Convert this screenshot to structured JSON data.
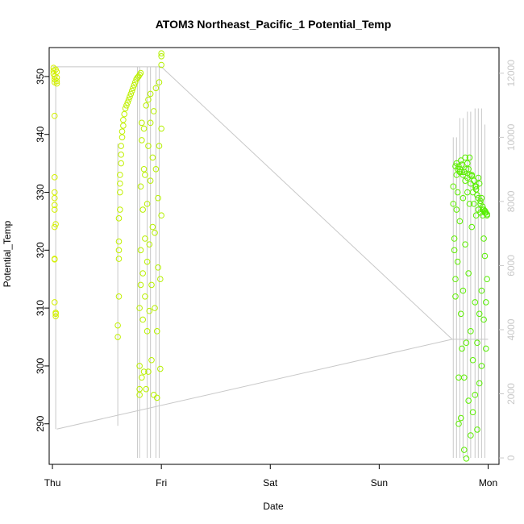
{
  "chart_data": {
    "type": "scatter",
    "title": "ATOM3 Northeast_Pacific_1 Potential_Temp",
    "xlabel": "Date",
    "ylabel": "Potential_Temp",
    "x_ticks": [
      "Thu",
      "Fri",
      "Sat",
      "Sun",
      "Mon"
    ],
    "xlim": [
      -0.03,
      4.1
    ],
    "ylim": [
      283,
      355
    ],
    "y_ticks": [
      290,
      300,
      310,
      320,
      330,
      340,
      350
    ],
    "y2lim": [
      -200,
      12800
    ],
    "y2_ticks": [
      0,
      2000,
      4000,
      6000,
      8000,
      10000,
      12000
    ],
    "grid": false,
    "legend": "none",
    "series": [
      {
        "kind": "points",
        "color_start": "#d4f000",
        "color_end": "#55ee00",
        "x": [
          0.01,
          0.01,
          0.01,
          0.02,
          0.02,
          0.02,
          0.02,
          0.02,
          0.02,
          0.02,
          0.02,
          0.02,
          0.03,
          0.02,
          0.02,
          0.02,
          0.02,
          0.03,
          0.03,
          0.03,
          0.03,
          0.04,
          0.04,
          0.04,
          0.04,
          0.6,
          0.6,
          0.61,
          0.61,
          0.61,
          0.61,
          0.61,
          0.62,
          0.62,
          0.62,
          0.62,
          0.63,
          0.63,
          0.63,
          0.64,
          0.64,
          0.65,
          0.65,
          0.66,
          0.67,
          0.68,
          0.69,
          0.7,
          0.71,
          0.72,
          0.73,
          0.74,
          0.75,
          0.76,
          0.77,
          0.78,
          0.79,
          0.8,
          0.81,
          0.8,
          0.8,
          0.8,
          0.8,
          0.81,
          0.81,
          0.81,
          0.82,
          0.82,
          0.82,
          0.83,
          0.83,
          0.83,
          0.84,
          0.84,
          0.84,
          0.85,
          0.85,
          0.85,
          0.86,
          0.86,
          0.87,
          0.87,
          0.87,
          0.88,
          0.88,
          0.88,
          0.89,
          0.89,
          0.9,
          0.9,
          0.9,
          0.91,
          0.91,
          0.92,
          0.92,
          0.93,
          0.93,
          0.94,
          0.94,
          0.95,
          0.95,
          0.96,
          0.96,
          0.97,
          0.97,
          0.98,
          0.98,
          0.99,
          0.99,
          1.0,
          1.0,
          1.0,
          1.0,
          1.0,
          3.68,
          3.68,
          3.69,
          3.69,
          3.7,
          3.7,
          3.71,
          3.71,
          3.72,
          3.72,
          3.73,
          3.73,
          3.74,
          3.74,
          3.75,
          3.75,
          3.76,
          3.76,
          3.77,
          3.77,
          3.78,
          3.78,
          3.79,
          3.79,
          3.8,
          3.8,
          3.81,
          3.81,
          3.82,
          3.82,
          3.83,
          3.83,
          3.84,
          3.84,
          3.85,
          3.85,
          3.86,
          3.86,
          3.87,
          3.87,
          3.88,
          3.88,
          3.89,
          3.89,
          3.9,
          3.9,
          3.91,
          3.91,
          3.92,
          3.92,
          3.93,
          3.93,
          3.94,
          3.94,
          3.95,
          3.95,
          3.96,
          3.96,
          3.97,
          3.97,
          3.98,
          3.98,
          3.99,
          3.99,
          3.7,
          3.71,
          3.72,
          3.73,
          3.74,
          3.75,
          3.76,
          3.77,
          3.78,
          3.79,
          3.8,
          3.81,
          3.82,
          3.83,
          3.84,
          3.85,
          3.86,
          3.87,
          3.88,
          3.89,
          3.9,
          3.91,
          3.92,
          3.93,
          3.94,
          3.95,
          3.96,
          3.97,
          3.98,
          3.99
        ],
        "y": [
          351.5,
          351.0,
          350.5,
          350.0,
          349.5,
          349.0,
          343.2,
          332.6,
          330.0,
          329.0,
          327.8,
          327.0,
          324.5,
          324.0,
          318.5,
          318.4,
          311.0,
          309.2,
          309.0,
          308.6,
          351.2,
          350.8,
          349.8,
          349.2,
          348.8,
          305.0,
          307.0,
          312.0,
          318.5,
          320.0,
          321.5,
          325.5,
          327.0,
          330.0,
          331.5,
          333.0,
          335.0,
          336.5,
          338.0,
          339.5,
          340.5,
          341.5,
          342.5,
          343.5,
          344.5,
          345.0,
          345.5,
          346.0,
          346.5,
          347.0,
          347.5,
          348.0,
          348.5,
          349.0,
          349.5,
          349.8,
          350.0,
          350.3,
          350.6,
          295.0,
          296.0,
          300.0,
          310.0,
          314.0,
          320.0,
          331.0,
          339.0,
          342.0,
          298.0,
          308.0,
          316.0,
          327.0,
          334.0,
          341.0,
          299.0,
          312.0,
          322.0,
          333.0,
          345.0,
          296.0,
          306.0,
          318.0,
          328.0,
          338.0,
          346.0,
          299.0,
          309.5,
          321.0,
          332.0,
          342.0,
          347.0,
          301.0,
          314.0,
          324.0,
          336.0,
          344.0,
          295.0,
          310.0,
          323.0,
          334.0,
          348.0,
          294.5,
          306.0,
          317.0,
          329.0,
          338.0,
          349.0,
          299.5,
          315.0,
          326.0,
          341.0,
          352.0,
          353.5,
          354.0,
          331.0,
          328.0,
          322.0,
          320.0,
          315.0,
          312.0,
          333.0,
          327.0,
          330.0,
          318.0,
          290.0,
          298.0,
          334.0,
          325.0,
          309.0,
          291.0,
          303.0,
          333.5,
          329.0,
          313.0,
          298.0,
          285.5,
          332.0,
          321.0,
          304.0,
          284.0,
          335.0,
          330.0,
          316.0,
          294.0,
          336.0,
          328.0,
          306.0,
          288.0,
          333.0,
          324.0,
          301.0,
          292.0,
          332.0,
          328.0,
          311.0,
          295.0,
          331.0,
          326.0,
          304.0,
          289.0,
          329.0,
          327.0,
          309.0,
          297.0,
          328.0,
          326.5,
          313.0,
          300.0,
          327.0,
          326.0,
          322.0,
          308.0,
          326.5,
          319.0,
          311.0,
          303.0,
          326.0,
          315.0,
          334.5,
          335.0,
          334.0,
          334.5,
          333.5,
          335.5,
          334.8,
          333.0,
          333.5,
          336.0,
          334.0,
          332.5,
          334.0,
          333.0,
          331.5,
          332.8,
          330.0,
          332.0,
          331.0,
          330.5,
          329.5,
          332.5,
          331.5,
          328.5,
          329.0,
          327.5,
          327.0,
          326.8,
          326.5,
          326.2
        ]
      },
      {
        "kind": "line",
        "axis": "right",
        "color": "#c8c8c8",
        "x": [
          0.0,
          0.0,
          0.03,
          0.04,
          0.05,
          0.06,
          0.07,
          0.08,
          0.09,
          0.1,
          0.11,
          0.12,
          0.13,
          0.14,
          0.15,
          0.16,
          0.17,
          0.18,
          0.19,
          0.2,
          0.21,
          0.22,
          0.23,
          0.24,
          0.25,
          0.26,
          0.27,
          0.28,
          0.29,
          0.3,
          0.31,
          0.32,
          0.33,
          0.34,
          0.35,
          0.36,
          0.37,
          0.38,
          0.39,
          0.4,
          0.41,
          0.42,
          0.43,
          0.44,
          0.45,
          0.46,
          0.47,
          0.48,
          0.49,
          0.5,
          0.51,
          0.52,
          0.53,
          0.54,
          0.55,
          0.56,
          0.57,
          0.58,
          0.59,
          0.6,
          0.61,
          0.62,
          0.63,
          0.64,
          0.65,
          0.66,
          0.67,
          0.68,
          0.69,
          0.7,
          0.71,
          0.72,
          0.73,
          0.74,
          0.75,
          0.76,
          0.77,
          0.78,
          0.79,
          0.8,
          0.81,
          0.82,
          0.83,
          0.84,
          0.85,
          0.86,
          0.87,
          0.88,
          0.89,
          0.9,
          0.91,
          0.92,
          0.93,
          0.94,
          0.95,
          0.96,
          0.97,
          0.98,
          0.99,
          1.0,
          3.67,
          3.68,
          3.69,
          3.7,
          3.71,
          3.72,
          3.73,
          3.74,
          3.75,
          3.76,
          3.77,
          3.78,
          3.79,
          3.8,
          3.81,
          3.82,
          3.83,
          3.84,
          3.85,
          3.86,
          3.87,
          3.88,
          3.89,
          3.9,
          3.91,
          3.92,
          3.93,
          3.94,
          3.95,
          3.96,
          3.97,
          3.98,
          3.99,
          4.0
        ],
        "y": [
          12200,
          12200,
          12200,
          12200,
          12200,
          12200,
          12200,
          12200,
          12200,
          12200,
          12200,
          12200,
          12200,
          12200,
          12200,
          12200,
          12200,
          12200,
          12200,
          12200,
          12200,
          12200,
          12200,
          12200,
          12200,
          12200,
          12200,
          12200,
          12200,
          12200,
          12200,
          12200,
          12200,
          12200,
          12200,
          12200,
          12200,
          12200,
          12200,
          12200,
          12200,
          12200,
          12200,
          12200,
          12200,
          12200,
          12200,
          12200,
          12200,
          12200,
          12200,
          12200,
          12200,
          12200,
          12200,
          12200,
          12200,
          12200,
          12200,
          12200,
          12200,
          12200,
          12200,
          12200,
          12200,
          12200,
          12200,
          12200,
          12200,
          12200,
          12200,
          12200,
          12200,
          12200,
          12200,
          12200,
          12200,
          12200,
          12200,
          12200,
          12200,
          12200,
          12200,
          12200,
          12200,
          12200,
          12200,
          12200,
          12200,
          12200,
          12200,
          12200,
          12200,
          12200,
          12200,
          12200,
          12200,
          12200,
          12200,
          12200,
          3700,
          3700,
          3700,
          3700,
          3700,
          3700,
          3700,
          3700,
          3700,
          3700,
          3700,
          3700,
          3700,
          3700,
          3700,
          3700,
          3700,
          3700,
          3700,
          3700,
          3700,
          3700,
          3700,
          3700,
          3700,
          3700,
          3700,
          3700,
          3700,
          3700,
          3700,
          3700,
          3700,
          3700
        ]
      }
    ]
  }
}
